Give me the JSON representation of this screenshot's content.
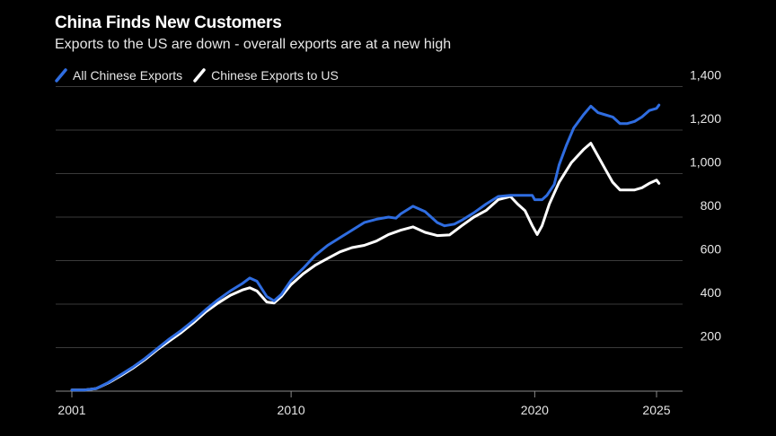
{
  "title": "China Finds New Customers",
  "subtitle": "Exports to the US are down - overall exports are at a new high",
  "chart_data": {
    "type": "line",
    "title": "China Finds New Customers",
    "subtitle": "Exports to the US are down - overall exports are at a new high",
    "xlabel": "",
    "ylabel": "",
    "xlim": [
      2001,
      2025.9
    ],
    "ylim": [
      0,
      1400
    ],
    "y_ticks": [
      200,
      400,
      600,
      800,
      1000,
      1200,
      1400
    ],
    "y_tick_labels": [
      "200",
      "400",
      "600",
      "800",
      "1,000",
      "1,200",
      "1,400"
    ],
    "x_ticks": [
      2001,
      2010,
      2020,
      2025
    ],
    "x_tick_labels": [
      "2001",
      "2010",
      "2020",
      "2025"
    ],
    "y_axis_side": "right",
    "grid": "horizontal",
    "legend": "top-left",
    "series": [
      {
        "name": "All Chinese Exports",
        "color": "#2f6de1",
        "x": [
          2001,
          2001.5,
          2002,
          2002.5,
          2003,
          2003.5,
          2004,
          2004.5,
          2005,
          2005.5,
          2006,
          2006.5,
          2007,
          2007.5,
          2008,
          2008.3,
          2008.6,
          2009,
          2009.3,
          2009.6,
          2010,
          2010.5,
          2011,
          2011.5,
          2012,
          2012.5,
          2013,
          2013.5,
          2014,
          2014.3,
          2014.5,
          2015,
          2015.5,
          2016,
          2016.3,
          2016.7,
          2017,
          2017.5,
          2018,
          2018.5,
          2019,
          2019.3,
          2019.6,
          2019.9,
          2020,
          2020.3,
          2020.5,
          2020.8,
          2021,
          2021.3,
          2021.6,
          2022,
          2022.3,
          2022.6,
          2022.9,
          2023.2,
          2023.5,
          2023.8,
          2024.1,
          2024.4,
          2024.7,
          2025,
          2025.1
        ],
        "values": [
          5,
          5,
          12,
          40,
          75,
          110,
          150,
          195,
          240,
          280,
          325,
          375,
          420,
          460,
          495,
          520,
          505,
          435,
          415,
          445,
          510,
          565,
          625,
          670,
          705,
          740,
          775,
          790,
          800,
          795,
          815,
          850,
          825,
          775,
          760,
          768,
          785,
          820,
          860,
          895,
          900,
          900,
          900,
          900,
          880,
          880,
          900,
          950,
          1040,
          1130,
          1210,
          1270,
          1310,
          1280,
          1270,
          1260,
          1230,
          1230,
          1240,
          1260,
          1290,
          1300,
          1315
        ]
      },
      {
        "name": "Chinese Exports to US",
        "color": "#ffffff",
        "x": [
          2001,
          2001.5,
          2002,
          2002.5,
          2003,
          2003.5,
          2004,
          2004.5,
          2005,
          2005.5,
          2006,
          2006.5,
          2007,
          2007.5,
          2008,
          2008.3,
          2008.6,
          2009,
          2009.3,
          2009.6,
          2010,
          2010.5,
          2011,
          2011.5,
          2012,
          2012.5,
          2013,
          2013.5,
          2014,
          2014.5,
          2015,
          2015.5,
          2016,
          2016.5,
          2017,
          2017.5,
          2018,
          2018.5,
          2019,
          2019.3,
          2019.6,
          2019.9,
          2020.1,
          2020.3,
          2020.6,
          2021,
          2021.5,
          2022,
          2022.3,
          2022.6,
          2022.9,
          2023.2,
          2023.5,
          2023.8,
          2024.1,
          2024.4,
          2024.7,
          2025,
          2025.1
        ],
        "values": [
          5,
          5,
          12,
          38,
          70,
          105,
          145,
          190,
          230,
          270,
          315,
          365,
          405,
          440,
          465,
          475,
          460,
          410,
          405,
          435,
          490,
          540,
          580,
          610,
          640,
          660,
          670,
          690,
          720,
          740,
          755,
          730,
          715,
          718,
          760,
          800,
          830,
          880,
          895,
          860,
          830,
          760,
          720,
          760,
          860,
          960,
          1050,
          1110,
          1140,
          1080,
          1020,
          960,
          925,
          925,
          925,
          935,
          955,
          970,
          955
        ]
      }
    ]
  }
}
